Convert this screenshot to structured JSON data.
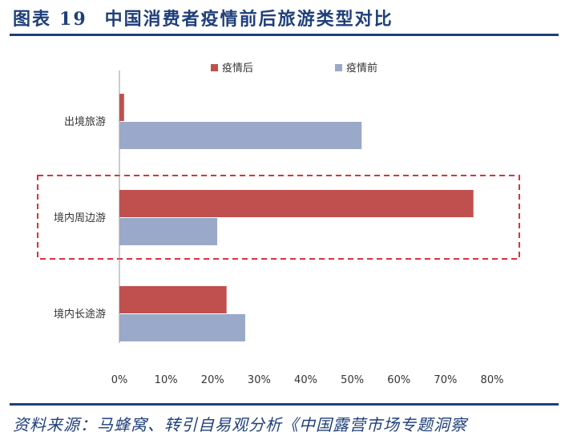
{
  "header": {
    "prefix": "图表",
    "number": "19",
    "title": "中国消费者疫情前后旅游类型对比"
  },
  "footer": {
    "source": "资料来源：马蜂窝、转引自易观分析《中国露营市场专题洞察"
  },
  "colors": {
    "accent": "#1f3f7a",
    "after": "#c0504d",
    "before": "#9aa8c9",
    "highlight": "#d9333f"
  },
  "chart_data": {
    "type": "bar",
    "orientation": "horizontal",
    "categories": [
      "出境旅游",
      "境内周边游",
      "境内长途游"
    ],
    "series": [
      {
        "name": "疫情后",
        "values": [
          1,
          76,
          23
        ]
      },
      {
        "name": "疫情前",
        "values": [
          52,
          21,
          27
        ]
      }
    ],
    "xlim": [
      0,
      80
    ],
    "xticks": [
      "0%",
      "10%",
      "20%",
      "30%",
      "40%",
      "50%",
      "60%",
      "70%",
      "80%"
    ],
    "unit": "%",
    "legend": "top",
    "grid": false,
    "highlighted_category": "境内周边游"
  }
}
